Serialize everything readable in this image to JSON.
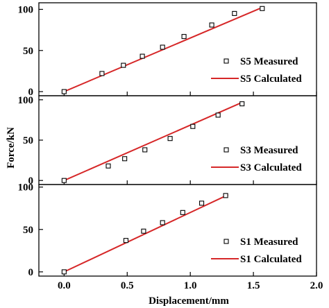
{
  "chart_data": {
    "type": "scatter",
    "xlabel": "Displacement/mm",
    "ylabel": "Force/kN",
    "xlim": [
      -0.2,
      2.0
    ],
    "x_ticks": [
      "0.0",
      "0.5",
      "1.0",
      "1.5",
      "2.0"
    ],
    "x_tick_values": [
      0.0,
      0.5,
      1.0,
      1.5,
      2.0
    ],
    "legend_position": "right",
    "line_color": "#d62728",
    "marker_color": "#000000",
    "panels": [
      {
        "name": "S5",
        "ylim": [
          -5,
          108
        ],
        "y_ticks": [
          "0",
          "50",
          "100"
        ],
        "y_tick_values": [
          0,
          50,
          100
        ],
        "legend": {
          "measured": "S5 Measured",
          "calculated": "S5 Calculated"
        },
        "measured": {
          "x": [
            0.0,
            0.3,
            0.47,
            0.62,
            0.78,
            0.95,
            1.17,
            1.35,
            1.57
          ],
          "y": [
            0,
            22,
            32,
            43,
            54,
            67,
            81,
            95,
            101
          ]
        },
        "calculated": {
          "x": [
            0.0,
            1.55
          ],
          "y": [
            0,
            101
          ]
        }
      },
      {
        "name": "S3",
        "ylim": [
          -5,
          105
        ],
        "y_ticks": [
          "0",
          "50",
          "100"
        ],
        "y_tick_values": [
          0,
          50,
          100
        ],
        "legend": {
          "measured": "S3 Measured",
          "calculated": "S3 Calculated"
        },
        "measured": {
          "x": [
            0.0,
            0.35,
            0.48,
            0.64,
            0.84,
            1.02,
            1.22,
            1.41
          ],
          "y": [
            0,
            18,
            27,
            38,
            52,
            67,
            81,
            95
          ]
        },
        "calculated": {
          "x": [
            0.0,
            1.4
          ],
          "y": [
            0,
            96
          ]
        }
      },
      {
        "name": "S1",
        "ylim": [
          -5,
          103
        ],
        "y_ticks": [
          "0",
          "50",
          "100"
        ],
        "y_tick_values": [
          0,
          50,
          100
        ],
        "legend": {
          "measured": "S1 Measured",
          "calculated": "S1 Calculated"
        },
        "measured": {
          "x": [
            0.0,
            0.49,
            0.63,
            0.78,
            0.94,
            1.09,
            1.28
          ],
          "y": [
            0,
            37,
            48,
            58,
            70,
            81,
            90
          ]
        },
        "calculated": {
          "x": [
            0.0,
            1.3
          ],
          "y": [
            0,
            91
          ]
        }
      }
    ]
  }
}
